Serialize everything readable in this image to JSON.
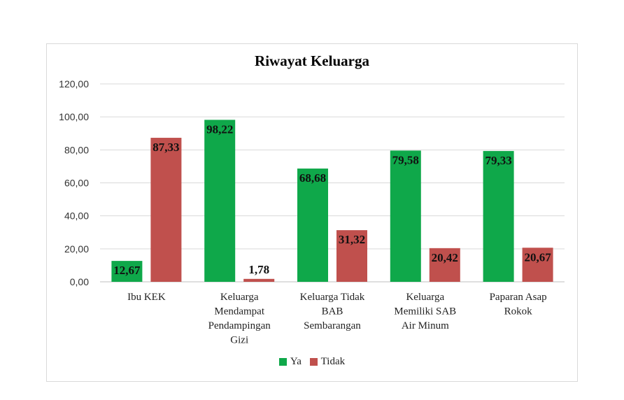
{
  "chart_data": {
    "type": "bar",
    "title": "Riwayat Keluarga",
    "categories": [
      [
        "Ibu KEK"
      ],
      [
        "Keluarga",
        "Mendampat",
        "Pendampingan",
        "Gizi"
      ],
      [
        "Keluarga Tidak",
        "BAB",
        "Sembarangan"
      ],
      [
        "Keluarga",
        "Memiliki SAB",
        "Air Minum"
      ],
      [
        "Paparan Asap",
        "Rokok"
      ]
    ],
    "series": [
      {
        "name": "Ya",
        "color": "#0fa84a",
        "values": [
          12.67,
          98.22,
          68.68,
          79.58,
          79.33
        ],
        "labels": [
          "12,67",
          "98,22",
          "68,68",
          "79,58",
          "79,33"
        ]
      },
      {
        "name": "Tidak",
        "color": "#c0504d",
        "values": [
          87.33,
          1.78,
          31.32,
          20.42,
          20.67
        ],
        "labels": [
          "87,33",
          "1,78",
          "31,32",
          "20,42",
          "20,67"
        ]
      }
    ],
    "ylim": [
      0,
      120
    ],
    "yticks": [
      "0,00",
      "20,00",
      "40,00",
      "60,00",
      "80,00",
      "100,00",
      "120,00"
    ],
    "grid": true,
    "legend": "bottom"
  }
}
